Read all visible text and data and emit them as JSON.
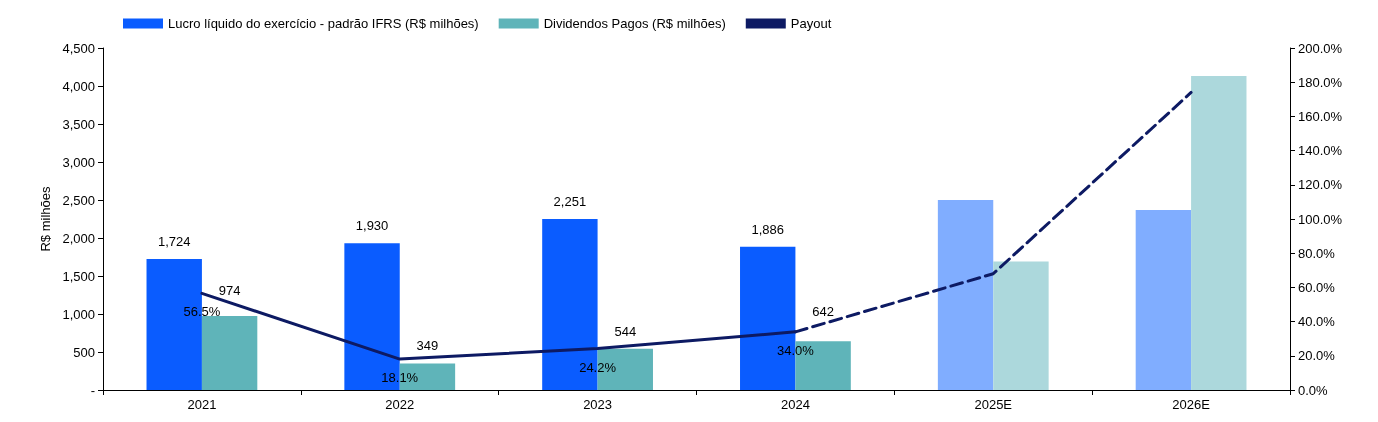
{
  "chart_data": {
    "type": "bar",
    "categories": [
      "2021",
      "2022",
      "2023",
      "2024",
      "2025E",
      "2026E"
    ],
    "ylabel": "R$ milhões",
    "ylim": [
      0,
      4500
    ],
    "yticks": [
      {
        "value": 0,
        "label": "-"
      },
      {
        "value": 500,
        "label": "500"
      },
      {
        "value": 1000,
        "label": "1,000"
      },
      {
        "value": 1500,
        "label": "1,500"
      },
      {
        "value": 2000,
        "label": "2,000"
      },
      {
        "value": 2500,
        "label": "2,500"
      },
      {
        "value": 3000,
        "label": "3,000"
      },
      {
        "value": 3500,
        "label": "3,500"
      },
      {
        "value": 4000,
        "label": "4,000"
      },
      {
        "value": 4500,
        "label": "4,500"
      }
    ],
    "y2lim": [
      0,
      200
    ],
    "y2ticks": [
      {
        "value": 0,
        "label": "0.0%"
      },
      {
        "value": 20,
        "label": "20.0%"
      },
      {
        "value": 40,
        "label": "40.0%"
      },
      {
        "value": 60,
        "label": "60.0%"
      },
      {
        "value": 80,
        "label": "80.0%"
      },
      {
        "value": 100,
        "label": "100.0%"
      },
      {
        "value": 120,
        "label": "120.0%"
      },
      {
        "value": 140,
        "label": "140.0%"
      },
      {
        "value": 160,
        "label": "160.0%"
      },
      {
        "value": 180,
        "label": "180.0%"
      },
      {
        "value": 200,
        "label": "200.0%"
      }
    ],
    "legend": "top left",
    "series": [
      {
        "name": "Lucro líquido do exercício - padrão IFRS (R$ milhões)",
        "color": "#0a5cff",
        "colors": [
          "#0a5cff",
          "#0a5cff",
          "#0a5cff",
          "#0a5cff",
          "#80adff",
          "#80adff"
        ],
        "values": [
          1724,
          1930,
          2251,
          1886,
          2500,
          2370
        ],
        "value_labels": [
          "1,724",
          "1,930",
          "2,251",
          "1,886",
          null,
          null
        ]
      },
      {
        "name": "Dividendos Pagos (R$ milhões)",
        "color": "#5fb4b9",
        "colors": [
          "#5fb4b9",
          "#5fb4b9",
          "#5fb4b9",
          "#5fb4b9",
          "#acd8dc",
          "#acd8dc"
        ],
        "values": [
          974,
          349,
          544,
          642,
          1690,
          4130
        ],
        "value_labels": [
          "974",
          "349",
          "544",
          "642",
          null,
          null
        ]
      },
      {
        "name": "Payout",
        "type": "line",
        "axis": "y2",
        "color": "#0d1a63",
        "line_style": "solid",
        "values": [
          56.5,
          18.1,
          24.2,
          34.0,
          null,
          null
        ],
        "value_labels": [
          "56.5%",
          "18.1%",
          "24.2%",
          "34.0%",
          null,
          null
        ]
      },
      {
        "type": "line",
        "axis": "y2",
        "color": "#0d1a63",
        "line_style": "dashed",
        "values": [
          null,
          null,
          null,
          34.0,
          68,
          174
        ]
      }
    ]
  }
}
